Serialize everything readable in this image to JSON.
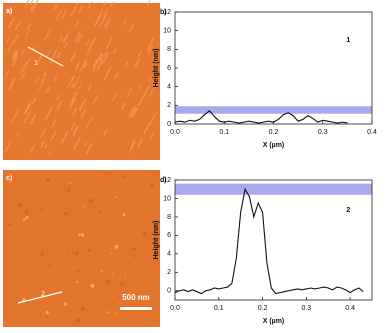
{
  "images": [
    {
      "label": "a)",
      "line_label": "1"
    },
    {
      "label": "c)",
      "line_label": "2",
      "scale_bar": "500 nm"
    }
  ],
  "chart_data": [
    {
      "type": "line",
      "panel_label": "b)",
      "annotation": "1",
      "xlabel": "X (µm)",
      "ylabel": "Height (nm)",
      "x": [
        0,
        0.01,
        0.02,
        0.03,
        0.04,
        0.05,
        0.06,
        0.07,
        0.08,
        0.09,
        0.1,
        0.11,
        0.12,
        0.13,
        0.14,
        0.15,
        0.16,
        0.17,
        0.18,
        0.19,
        0.2,
        0.21,
        0.22,
        0.23,
        0.24,
        0.25,
        0.26,
        0.27,
        0.28,
        0.29,
        0.3,
        0.31,
        0.32,
        0.33,
        0.34,
        0.35
      ],
      "values": [
        0.2,
        0.3,
        0.2,
        0.4,
        0.3,
        0.5,
        1.0,
        1.4,
        0.8,
        0.3,
        0.2,
        0.3,
        0.2,
        0.1,
        0.2,
        0.3,
        0.2,
        0.1,
        0.2,
        0.3,
        0.2,
        0.5,
        1.0,
        1.2,
        0.9,
        0.3,
        0.5,
        0.9,
        0.6,
        0.2,
        0.4,
        0.3,
        0.2,
        0.1,
        0.2,
        0.1
      ],
      "color": "#111111",
      "band": [
        1.1,
        1.9
      ],
      "band_color": "#8c8ce6",
      "xlim": [
        0,
        0.4
      ],
      "ylim": [
        0,
        12
      ],
      "xticks": [
        {
          "value": 0,
          "label": "0.0"
        },
        0.1,
        0.2,
        0.3,
        0.4
      ],
      "yticks": [
        0,
        2,
        4,
        6,
        8,
        10,
        12
      ]
    },
    {
      "type": "line",
      "panel_label": "d)",
      "annotation": "2",
      "xlabel": "X (µm)",
      "ylabel": "Height (nm)",
      "x": [
        0,
        0.01,
        0.02,
        0.03,
        0.04,
        0.05,
        0.06,
        0.07,
        0.08,
        0.09,
        0.1,
        0.11,
        0.12,
        0.13,
        0.14,
        0.15,
        0.16,
        0.17,
        0.18,
        0.19,
        0.2,
        0.21,
        0.22,
        0.23,
        0.24,
        0.25,
        0.26,
        0.27,
        0.28,
        0.29,
        0.3,
        0.31,
        0.32,
        0.33,
        0.34,
        0.35,
        0.36,
        0.37,
        0.38,
        0.39,
        0.4,
        0.41,
        0.42,
        0.43
      ],
      "values": [
        -0.2,
        0,
        0.1,
        -0.1,
        0.1,
        -0.1,
        -0.3,
        0,
        0.1,
        0.3,
        0.2,
        0.3,
        0.4,
        0.8,
        3.5,
        8.5,
        11,
        10.2,
        8.0,
        9.5,
        8.5,
        3,
        0.3,
        -0.3,
        -0.2,
        -0.1,
        0,
        0.1,
        0.2,
        0.1,
        0.2,
        0.3,
        0.2,
        0.3,
        0.4,
        0.3,
        0.1,
        0.4,
        0.3,
        0.1,
        -0.2,
        0.1,
        0.3,
        -0.1
      ],
      "color": "#111111",
      "band": [
        10.4,
        11.6
      ],
      "band_color": "#8c8ce6",
      "xlim": [
        0,
        0.45
      ],
      "ylim": [
        -1,
        12
      ],
      "xticks": [
        {
          "value": 0,
          "label": "0.0"
        },
        0.1,
        0.2,
        0.3,
        0.4
      ],
      "yticks": [
        0,
        2,
        4,
        6,
        8,
        10,
        12
      ]
    }
  ]
}
